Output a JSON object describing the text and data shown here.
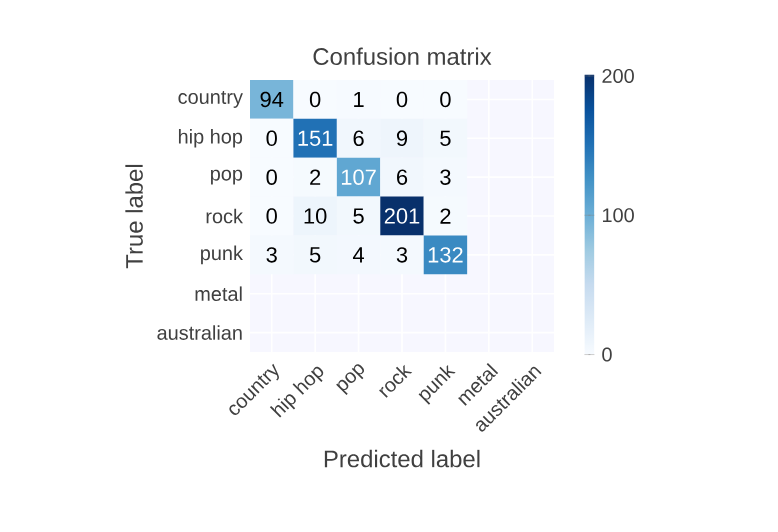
{
  "chart_data": {
    "type": "heatmap",
    "title": "Confusion matrix",
    "xlabel": "Predicted label",
    "ylabel": "True label",
    "categories": [
      "country",
      "hip hop",
      "pop",
      "rock",
      "punk",
      "metal",
      "australian"
    ],
    "y_categories": [
      "country",
      "hip hop",
      "pop",
      "rock",
      "punk",
      "metal",
      "australian"
    ],
    "cells": [
      [
        94,
        0,
        1,
        0,
        0,
        null,
        null
      ],
      [
        0,
        151,
        6,
        9,
        5,
        null,
        null
      ],
      [
        0,
        2,
        107,
        6,
        3,
        null,
        null
      ],
      [
        0,
        10,
        5,
        201,
        2,
        null,
        null
      ],
      [
        3,
        5,
        4,
        3,
        132,
        null,
        null
      ],
      [
        null,
        null,
        null,
        null,
        null,
        null,
        null
      ],
      [
        null,
        null,
        null,
        null,
        null,
        null,
        null
      ]
    ],
    "clim": [
      0,
      201
    ],
    "cticks": [
      0,
      100,
      200
    ],
    "grid": true,
    "data_labels": true
  }
}
